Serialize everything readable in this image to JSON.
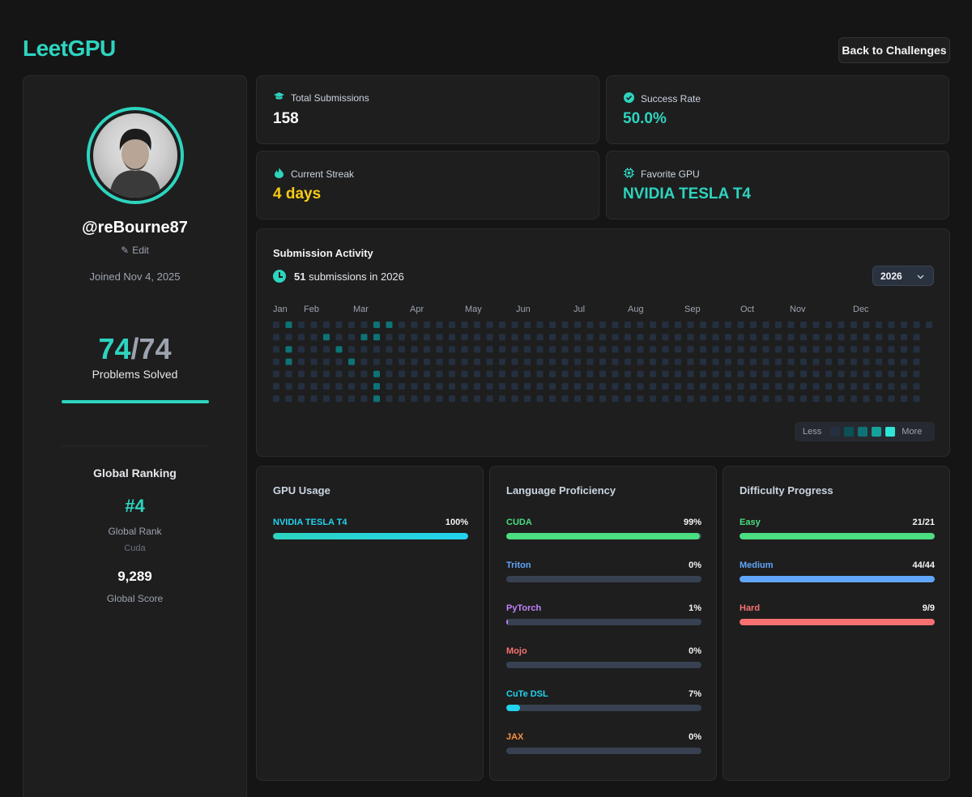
{
  "header": {
    "brand": "LeetGPU",
    "back_label": "Back to Challenges"
  },
  "profile": {
    "username": "@reBourne87",
    "edit_label": "Edit",
    "joined": "Joined Nov 4, 2025",
    "solved": "74",
    "total": "74",
    "solved_sep": "/",
    "solved_label": "Problems Solved",
    "solved_progress": 1.0,
    "ranking_title": "Global Ranking",
    "rank": "#4",
    "rank_label": "Global Rank",
    "rank_sub": "Cuda",
    "score": "9,289",
    "score_label": "Global Score"
  },
  "stats": {
    "total_submissions": {
      "label": "Total Submissions",
      "value": "158",
      "icon": "graduation-cap-icon"
    },
    "success_rate": {
      "label": "Success Rate",
      "value": "50.0%",
      "icon": "check-circle-icon"
    },
    "current_streak": {
      "label": "Current Streak",
      "value": "4 days",
      "icon": "flame-icon"
    },
    "favorite_gpu": {
      "label": "Favorite GPU",
      "value": "NVIDIA TESLA T4",
      "icon": "chip-icon"
    }
  },
  "activity": {
    "title": "Submission Activity",
    "count": "51",
    "count_text": "submissions in 2026",
    "year": "2026",
    "months": [
      "Jan",
      "Feb",
      "Mar",
      "Apr",
      "May",
      "Jun",
      "Jul",
      "Aug",
      "Sep",
      "Oct",
      "Nov",
      "Dec"
    ],
    "active_cells": [
      [
        1,
        0
      ],
      [
        1,
        2
      ],
      [
        1,
        3
      ],
      [
        4,
        1
      ],
      [
        5,
        2
      ],
      [
        6,
        3
      ],
      [
        7,
        1
      ],
      [
        8,
        1
      ],
      [
        8,
        0
      ],
      [
        8,
        4
      ],
      [
        8,
        5
      ],
      [
        8,
        6
      ],
      [
        9,
        0
      ]
    ],
    "legend_less": "Less",
    "legend_more": "More",
    "legend_colors": [
      "#243040",
      "#0b4f57",
      "#0d7377",
      "#14a39a",
      "#2ee6d6"
    ]
  },
  "gpu_usage": {
    "title": "GPU Usage",
    "items": [
      {
        "label": "NVIDIA TESLA T4",
        "pct": "100%",
        "value": 100,
        "color": "#22d3ee"
      }
    ]
  },
  "language": {
    "title": "Language Proficiency",
    "items": [
      {
        "label": "CUDA",
        "pct": "99%",
        "value": 99,
        "color": "#4ade80"
      },
      {
        "label": "Triton",
        "pct": "0%",
        "value": 0,
        "color": "#60a5fa"
      },
      {
        "label": "PyTorch",
        "pct": "1%",
        "value": 1,
        "color": "#c084fc"
      },
      {
        "label": "Mojo",
        "pct": "0%",
        "value": 0,
        "color": "#f87171"
      },
      {
        "label": "CuTe DSL",
        "pct": "7%",
        "value": 7,
        "color": "#22d3ee"
      },
      {
        "label": "JAX",
        "pct": "0%",
        "value": 0,
        "color": "#fb923c"
      }
    ]
  },
  "difficulty": {
    "title": "Difficulty Progress",
    "items": [
      {
        "label": "Easy",
        "pct": "21/21",
        "value": 100,
        "color": "#4ade80"
      },
      {
        "label": "Medium",
        "pct": "44/44",
        "value": 100,
        "color": "#60a5fa"
      },
      {
        "label": "Hard",
        "pct": "9/9",
        "value": 100,
        "color": "#f87171"
      }
    ]
  }
}
